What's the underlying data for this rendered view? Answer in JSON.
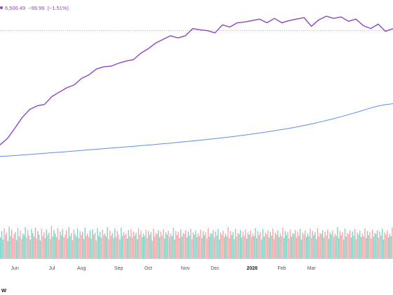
{
  "legend": {
    "dot_color": "#8e44c9",
    "value": "6,506.49",
    "change": "−99.99",
    "change_pct": "(−1.51%)"
  },
  "watermark": "w",
  "colors": {
    "price": "#8e44c9",
    "ma": "#5b8ee6",
    "vol_up": "#7fcfc4",
    "vol_down": "#f4a6a6",
    "ref_line": "#b5b5b5"
  },
  "chart_data": {
    "type": "line",
    "title": "",
    "xlabel": "",
    "ylabel": "",
    "x_ticks": [
      {
        "label": "Jun",
        "week": 2
      },
      {
        "label": "Jul",
        "week": 7
      },
      {
        "label": "Aug",
        "week": 11
      },
      {
        "label": "Sep",
        "week": 16
      },
      {
        "label": "Oct",
        "week": 20
      },
      {
        "label": "Nov",
        "week": 25
      },
      {
        "label": "Dec",
        "week": 29
      },
      {
        "label": "2026",
        "week": 34,
        "bold": true
      },
      {
        "label": "Feb",
        "week": 38
      },
      {
        "label": "Mar",
        "week": 42
      }
    ],
    "price_ylim": [
      5600,
      6620
    ],
    "reference_level": 6506,
    "series": [
      {
        "key": "price",
        "values": [
          5715,
          5760,
          5830,
          5905,
          5960,
          5985,
          5995,
          6050,
          6080,
          6110,
          6130,
          6175,
          6200,
          6240,
          6255,
          6260,
          6280,
          6295,
          6305,
          6350,
          6380,
          6420,
          6445,
          6470,
          6455,
          6470,
          6520,
          6510,
          6505,
          6490,
          6545,
          6530,
          6560,
          6565,
          6575,
          6585,
          6560,
          6590,
          6560,
          6575,
          6585,
          6595,
          6535,
          6580,
          6605,
          6590,
          6600,
          6570,
          6585,
          6540,
          6520,
          6550,
          6500,
          6520
        ]
      },
      {
        "key": "ma",
        "values": [
          5635,
          5639,
          5643,
          5648,
          5652,
          5657,
          5662,
          5666,
          5671,
          5676,
          5681,
          5686,
          5691,
          5696,
          5701,
          5706,
          5711,
          5716,
          5722,
          5727,
          5733,
          5739,
          5745,
          5751,
          5758,
          5765,
          5772,
          5780,
          5788,
          5797,
          5806,
          5816,
          5826,
          5837,
          5849,
          5862,
          5876,
          5891,
          5907,
          5924,
          5942,
          5961,
          5979,
          5992,
          6000
        ]
      }
    ],
    "volume": [
      42,
      55,
      38,
      60,
      47,
      52,
      35,
      64,
      45,
      58,
      41,
      49,
      53,
      37,
      61,
      44,
      56,
      39,
      50,
      47,
      63,
      42,
      57,
      46,
      38,
      59,
      51,
      44,
      62,
      40,
      55,
      48,
      36,
      60,
      45,
      53,
      41,
      58,
      47,
      52,
      39,
      65,
      44,
      57,
      50,
      43,
      61,
      38,
      54,
      46,
      59,
      42,
      48,
      56,
      40,
      63,
      45,
      51,
      37,
      58,
      49,
      44,
      60,
      41,
      55,
      47,
      53,
      39,
      62,
      46,
      50,
      43,
      57,
      40,
      59,
      48,
      52,
      36,
      61,
      45,
      54,
      42,
      58,
      47,
      50,
      44,
      63,
      39,
      56,
      46,
      51,
      41,
      60,
      43,
      55,
      48,
      38,
      62,
      45,
      53,
      47,
      50,
      40,
      57,
      44,
      59,
      42,
      54,
      46,
      52,
      39,
      61,
      48,
      56,
      43,
      50,
      45,
      58,
      41,
      55,
      47,
      53,
      36,
      60,
      44,
      51,
      49,
      57,
      42,
      54,
      46,
      59,
      40,
      52,
      48,
      56,
      43,
      50,
      45,
      62,
      38,
      55,
      47,
      53,
      41,
      58,
      44,
      51,
      49,
      57,
      42,
      54,
      46,
      60,
      39,
      52,
      48,
      56,
      43,
      50,
      45,
      58,
      41,
      55,
      47,
      53,
      40,
      61,
      44,
      51,
      49,
      57,
      42,
      54,
      46,
      59,
      38,
      52,
      48,
      56,
      43,
      50,
      45,
      63,
      41,
      55,
      47,
      53,
      39,
      60,
      44,
      51,
      49,
      57,
      42,
      54,
      46,
      58,
      40,
      52,
      48,
      56,
      43,
      50,
      45,
      61,
      41,
      55,
      47,
      53,
      38,
      59,
      44,
      51,
      49,
      57,
      42,
      54,
      46,
      60,
      39,
      52,
      48,
      56,
      43,
      50,
      45,
      62,
      41,
      55,
      47,
      53,
      40,
      58,
      44,
      51,
      49,
      57,
      42,
      54,
      46,
      59,
      38,
      52,
      48,
      56,
      43,
      50,
      45,
      60,
      41,
      55,
      47,
      53,
      39,
      61,
      44,
      51,
      49,
      57,
      42,
      54,
      46,
      58,
      40,
      52,
      48,
      56,
      43,
      50,
      45,
      63,
      41,
      55,
      47,
      53,
      38,
      60,
      44,
      51,
      49,
      57,
      42,
      54,
      46,
      59,
      39,
      52,
      48,
      56,
      43,
      50,
      45,
      61,
      41,
      55,
      47,
      53,
      40,
      58,
      44,
      51,
      49,
      57,
      42,
      54,
      46,
      60,
      38,
      52,
      48,
      56,
      43,
      50,
      45,
      62
    ],
    "volume_ylim": [
      0,
      110
    ]
  }
}
